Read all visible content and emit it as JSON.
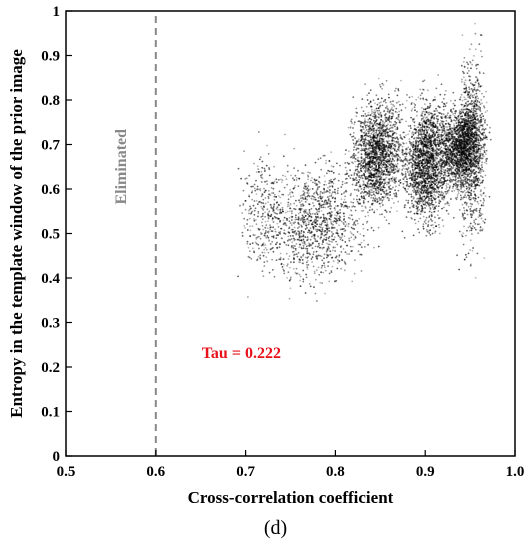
{
  "chart_data": {
    "type": "scatter",
    "xlabel": "Cross-correlation coefficient",
    "ylabel": "Entropy in the template window of the prior image",
    "panel_label": "(d)",
    "xlim": [
      0.5,
      1.0
    ],
    "ylim": [
      0,
      1
    ],
    "x_ticks": [
      "0.5",
      "0.6",
      "0.7",
      "0.8",
      "0.9",
      "1.0"
    ],
    "y_ticks": [
      "0",
      "0.1",
      "0.2",
      "0.3",
      "0.4",
      "0.5",
      "0.6",
      "0.7",
      "0.8",
      "0.9",
      "1"
    ],
    "threshold": {
      "x": 0.6,
      "style": "dashed",
      "label": "Eliminated"
    },
    "annotation": {
      "text": "Tau = 0.222",
      "x": 0.64,
      "y": 0.22
    },
    "point_color": "#000000",
    "annotation_color": "#e8121b",
    "threshold_color": "#888888",
    "series": [
      {
        "clusters": [
          {
            "x": [
              0.7,
              0.86
            ],
            "y": [
              0.33,
              0.72
            ],
            "count": 1100
          },
          {
            "x": [
              0.805,
              0.89
            ],
            "y": [
              0.5,
              0.86
            ],
            "count": 1700
          },
          {
            "x": [
              0.865,
              0.94
            ],
            "y": [
              0.46,
              0.86
            ],
            "count": 1900
          },
          {
            "x": [
              0.905,
              0.975
            ],
            "y": [
              0.56,
              0.83
            ],
            "count": 1600
          },
          {
            "x": [
              0.93,
              0.975
            ],
            "y": [
              0.38,
              0.99
            ],
            "count": 800
          },
          {
            "x": [
              0.68,
              0.76
            ],
            "y": [
              0.34,
              0.75
            ],
            "count": 300
          }
        ]
      }
    ]
  }
}
